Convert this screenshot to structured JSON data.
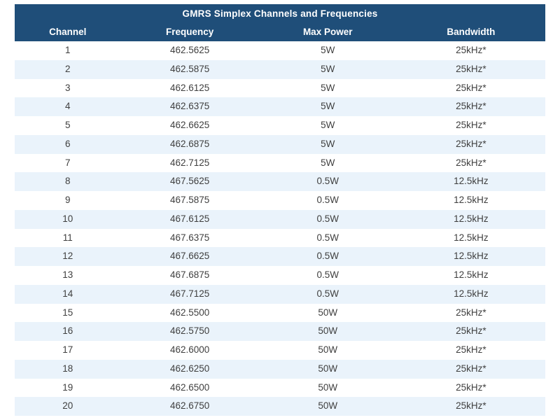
{
  "title": "GMRS Simplex Channels and Frequencies",
  "colors": {
    "header_bg": "#1F4E79",
    "header_text": "#FFFFFF",
    "stripe_bg": "#EAF3FB",
    "row_bg": "#FFFFFF",
    "cell_text": "#3F3F3F"
  },
  "chart_data": {
    "type": "table",
    "title": "GMRS Simplex Channels and Frequencies",
    "columns": [
      "Channel",
      "Frequency",
      "Max Power",
      "Bandwidth"
    ],
    "rows": [
      [
        "1",
        "462.5625",
        "5W",
        "25kHz*"
      ],
      [
        "2",
        "462.5875",
        "5W",
        "25kHz*"
      ],
      [
        "3",
        "462.6125",
        "5W",
        "25kHz*"
      ],
      [
        "4",
        "462.6375",
        "5W",
        "25kHz*"
      ],
      [
        "5",
        "462.6625",
        "5W",
        "25kHz*"
      ],
      [
        "6",
        "462.6875",
        "5W",
        "25kHz*"
      ],
      [
        "7",
        "462.7125",
        "5W",
        "25kHz*"
      ],
      [
        "8",
        "467.5625",
        "0.5W",
        "12.5kHz"
      ],
      [
        "9",
        "467.5875",
        "0.5W",
        "12.5kHz"
      ],
      [
        "10",
        "467.6125",
        "0.5W",
        "12.5kHz"
      ],
      [
        "11",
        "467.6375",
        "0.5W",
        "12.5kHz"
      ],
      [
        "12",
        "467.6625",
        "0.5W",
        "12.5kHz"
      ],
      [
        "13",
        "467.6875",
        "0.5W",
        "12.5kHz"
      ],
      [
        "14",
        "467.7125",
        "0.5W",
        "12.5kHz"
      ],
      [
        "15",
        "462.5500",
        "50W",
        "25kHz*"
      ],
      [
        "16",
        "462.5750",
        "50W",
        "25kHz*"
      ],
      [
        "17",
        "462.6000",
        "50W",
        "25kHz*"
      ],
      [
        "18",
        "462.6250",
        "50W",
        "25kHz*"
      ],
      [
        "19",
        "462.6500",
        "50W",
        "25kHz*"
      ],
      [
        "20",
        "462.6750",
        "50W",
        "25kHz*"
      ]
    ],
    "layout": {
      "striped": true,
      "header_position": "top",
      "text_align": "center"
    }
  }
}
